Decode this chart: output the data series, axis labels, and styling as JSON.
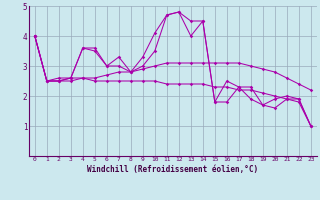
{
  "xlabel": "Windchill (Refroidissement éolien,°C)",
  "xlim": [
    -0.5,
    23.5
  ],
  "ylim": [
    0,
    5
  ],
  "yticks": [
    1,
    2,
    3,
    4,
    5
  ],
  "xticks": [
    0,
    1,
    2,
    3,
    4,
    5,
    6,
    7,
    8,
    9,
    10,
    11,
    12,
    13,
    14,
    15,
    16,
    17,
    18,
    19,
    20,
    21,
    22,
    23
  ],
  "bg_color": "#cce8ee",
  "line_color": "#aa00aa",
  "grid_color": "#99aabb",
  "series": [
    [
      4.0,
      2.5,
      2.5,
      2.6,
      3.6,
      3.5,
      3.0,
      3.3,
      2.8,
      3.3,
      4.1,
      4.7,
      4.8,
      4.0,
      4.5,
      1.8,
      2.5,
      2.3,
      1.9,
      1.7,
      1.9,
      2.0,
      1.9,
      1.0
    ],
    [
      4.0,
      2.5,
      2.6,
      2.6,
      3.6,
      3.6,
      3.0,
      3.0,
      2.8,
      3.0,
      3.5,
      4.7,
      4.8,
      4.5,
      4.5,
      1.8,
      1.8,
      2.3,
      2.3,
      1.7,
      1.6,
      1.9,
      1.9,
      1.0
    ],
    [
      4.0,
      2.5,
      2.5,
      2.6,
      2.6,
      2.6,
      2.7,
      2.8,
      2.8,
      2.9,
      3.0,
      3.1,
      3.1,
      3.1,
      3.1,
      3.1,
      3.1,
      3.1,
      3.0,
      2.9,
      2.8,
      2.6,
      2.4,
      2.2
    ],
    [
      4.0,
      2.5,
      2.5,
      2.5,
      2.6,
      2.5,
      2.5,
      2.5,
      2.5,
      2.5,
      2.5,
      2.4,
      2.4,
      2.4,
      2.4,
      2.3,
      2.3,
      2.2,
      2.2,
      2.1,
      2.0,
      1.9,
      1.8,
      1.0
    ]
  ]
}
